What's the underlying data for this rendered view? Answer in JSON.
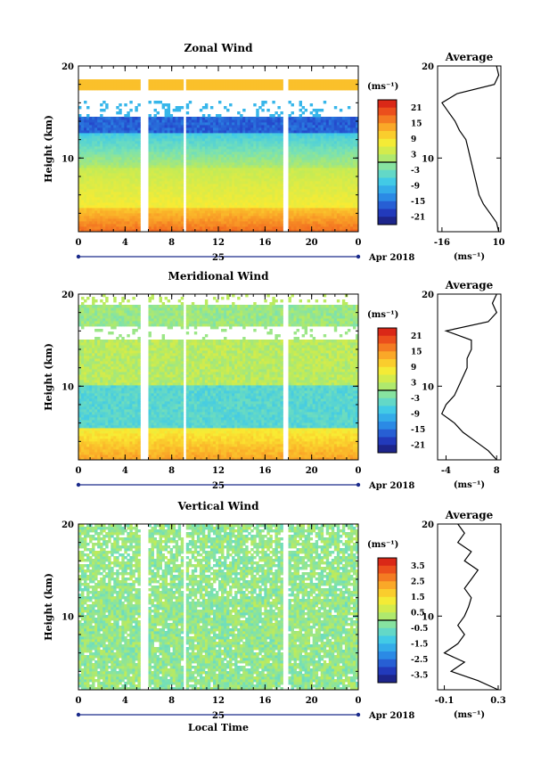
{
  "chart_data": [
    {
      "type": "heatmap",
      "title": "Zonal Wind",
      "ylabel": "Height (km)",
      "y_ticks": [
        "10",
        "20"
      ],
      "ylim": [
        2,
        20
      ],
      "x_ticks": [
        "0",
        "4",
        "8",
        "12",
        "16",
        "20",
        "0"
      ],
      "xlim": [
        0,
        24
      ],
      "date_day": "25",
      "date_month": "Apr 2018",
      "colorbar_unit": "(ms⁻¹)",
      "colorbar_ticks": [
        "21",
        "15",
        "9",
        "3",
        "-3",
        "-9",
        "-15",
        "-21"
      ],
      "colorbar_range": [
        -24,
        24
      ],
      "data_gaps_hours": [
        [
          5.4,
          5.9
        ],
        [
          8.9,
          9.3
        ],
        [
          17.6,
          18.0
        ]
      ],
      "profile": {
        "title": "Average",
        "x_ticks": [
          "-16",
          "10"
        ],
        "xlim": [
          -18,
          11
        ],
        "xlabel": "(ms⁻¹)",
        "y_ticks": [
          "10",
          "20"
        ],
        "heights_km": [
          2,
          3,
          4,
          5,
          6,
          7,
          8,
          9,
          10,
          11,
          12,
          13,
          14,
          15,
          16,
          17,
          18,
          19,
          20
        ],
        "values": [
          10,
          9,
          6,
          3,
          1,
          0,
          -1,
          -2,
          -3,
          -4,
          -5,
          -8,
          -10,
          -13,
          -16,
          -9,
          8,
          10,
          9
        ]
      }
    },
    {
      "type": "heatmap",
      "title": "Meridional Wind",
      "ylabel": "Height (km)",
      "y_ticks": [
        "10",
        "20"
      ],
      "ylim": [
        2,
        20
      ],
      "x_ticks": [
        "0",
        "4",
        "8",
        "12",
        "16",
        "20",
        "0"
      ],
      "xlim": [
        0,
        24
      ],
      "date_day": "25",
      "date_month": "Apr 2018",
      "colorbar_unit": "(ms⁻¹)",
      "colorbar_ticks": [
        "21",
        "15",
        "9",
        "3",
        "-3",
        "-9",
        "-15",
        "-21"
      ],
      "colorbar_range": [
        -24,
        24
      ],
      "data_gaps_hours": [
        [
          5.4,
          5.9
        ],
        [
          8.9,
          9.3
        ],
        [
          17.6,
          18.0
        ]
      ],
      "profile": {
        "title": "Average",
        "x_ticks": [
          "-4",
          "8"
        ],
        "xlim": [
          -6,
          9
        ],
        "xlabel": "(ms⁻¹)",
        "y_ticks": [
          "10",
          "20"
        ],
        "heights_km": [
          2,
          3,
          4,
          5,
          6,
          7,
          8,
          9,
          10,
          11,
          12,
          13,
          14,
          15,
          16,
          17,
          18,
          19,
          20
        ],
        "values": [
          8,
          6,
          3,
          0,
          -2,
          -5,
          -4,
          -2,
          -1,
          0,
          1,
          1,
          2,
          2,
          -4,
          6,
          8,
          7,
          8
        ]
      }
    },
    {
      "type": "heatmap",
      "title": "Vertical Wind",
      "ylabel": "Height (km)",
      "xlabel": "Local Time",
      "y_ticks": [
        "10",
        "20"
      ],
      "ylim": [
        2,
        20
      ],
      "x_ticks": [
        "0",
        "4",
        "8",
        "12",
        "16",
        "20",
        "0"
      ],
      "xlim": [
        0,
        24
      ],
      "date_day": "25",
      "date_month": "Apr 2018",
      "colorbar_unit": "(ms⁻¹)",
      "colorbar_ticks": [
        "3.5",
        "2.5",
        "1.5",
        "0.5",
        "-0.5",
        "-1.5",
        "-2.5",
        "-3.5"
      ],
      "colorbar_range": [
        -4,
        4
      ],
      "data_gaps_hours": [
        [
          5.4,
          5.9
        ],
        [
          8.9,
          9.3
        ],
        [
          17.6,
          18.0
        ]
      ],
      "profile": {
        "title": "Average",
        "x_ticks": [
          "-0.1",
          "0.3"
        ],
        "xlim": [
          -0.15,
          0.32
        ],
        "xlabel": "(ms⁻¹)",
        "y_ticks": [
          "10",
          "20"
        ],
        "heights_km": [
          2,
          3,
          4,
          5,
          6,
          7,
          8,
          9,
          10,
          11,
          12,
          13,
          14,
          15,
          16,
          17,
          18,
          19,
          20
        ],
        "values": [
          0.3,
          0.15,
          -0.05,
          0.05,
          -0.1,
          0.0,
          0.05,
          0.0,
          0.05,
          0.08,
          0.1,
          0.05,
          0.1,
          0.15,
          0.05,
          0.1,
          0.0,
          0.05,
          0.0
        ]
      }
    }
  ]
}
